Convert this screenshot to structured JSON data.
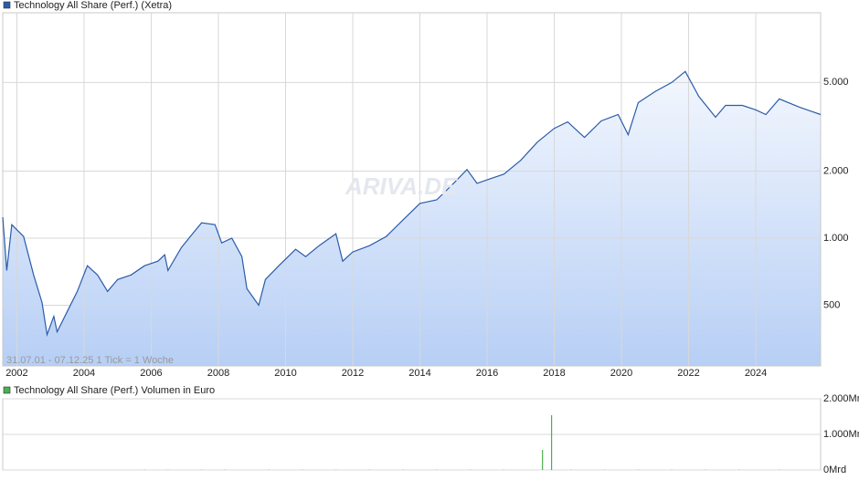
{
  "chart_data": [
    {
      "type": "line",
      "log_scale": true,
      "grid": true,
      "note": "31.07.01 - 07.12.25   1 Tick = 1 Woche",
      "watermark": "ARIVA.DE",
      "xlim": [
        2001.58,
        2025.93
      ],
      "xticks": [
        2002,
        2004,
        2006,
        2008,
        2010,
        2012,
        2014,
        2016,
        2018,
        2020,
        2022,
        2024
      ],
      "ylim": [
        267,
        10270
      ],
      "yticks": [
        500,
        {
          "value": 1000,
          "label": "1.000"
        },
        {
          "value": 2000,
          "label": "2.000"
        },
        {
          "value": 5000,
          "label": "5.000"
        }
      ],
      "x": [
        2001.58,
        2001.7,
        2001.85,
        2002.2,
        2002.5,
        2002.75,
        2002.9,
        2003.1,
        2003.2,
        2003.5,
        2003.8,
        2004.1,
        2004.4,
        2004.7,
        2005.0,
        2005.4,
        2005.8,
        2006.2,
        2006.4,
        2006.5,
        2006.9,
        2007.3,
        2007.5,
        2007.9,
        2008.1,
        2008.4,
        2008.7,
        2008.85,
        2009.2,
        2009.4,
        2009.8,
        2010.3,
        2010.6,
        2011.0,
        2011.5,
        2011.7,
        2012.0,
        2012.5,
        2013.0,
        2013.5,
        2014.0,
        2014.5,
        2015.0,
        2015.4,
        2015.7,
        2016.1,
        2016.5,
        2017.0,
        2017.5,
        2018.0,
        2018.4,
        2018.9,
        2019.4,
        2019.9,
        2020.2,
        2020.5,
        2021.0,
        2021.5,
        2021.9,
        2022.3,
        2022.8,
        2023.1,
        2023.6,
        2024.0,
        2024.3,
        2024.7,
        2025.3,
        2025.93
      ],
      "series": [
        {
          "name": "Technology All Share (Perf.) (Xetra)",
          "color": "#2a5caa",
          "values": [
            1242,
            716,
            1150,
            1018,
            684,
            514,
            369,
            446,
            380,
            469,
            577,
            752,
            684,
            577,
            652,
            684,
            752,
            788,
            842,
            716,
            908,
            1077,
            1172,
            1150,
            952,
            1000,
            826,
            593,
            500,
            652,
            752,
            891,
            826,
            925,
            1047,
            788,
            867,
            925,
            1018,
            1208,
            1432,
            1486,
            1762,
            2032,
            1762,
            1849,
            1938,
            2234,
            2700,
            3110,
            3324,
            2833,
            3359,
            3589,
            2912,
            4055,
            4547,
            5000,
            5600,
            4333,
            3491,
            3945,
            3945,
            3765,
            3589,
            4217,
            3873,
            3589
          ]
        }
      ]
    },
    {
      "type": "bar",
      "grid": true,
      "xlim": [
        2001.58,
        2025.93
      ],
      "ylim": [
        0,
        2000
      ],
      "yticks": [
        {
          "value": 0,
          "label": "0Mrd"
        },
        {
          "value": 1000,
          "label": "1.000Mrd"
        },
        {
          "value": 2000,
          "label": "2.000Mrd"
        }
      ],
      "x": [
        2005.8,
        2006.5,
        2007.5,
        2008.2,
        2009.5,
        2010.5,
        2011.5,
        2012.5,
        2013.5,
        2014.5,
        2015.5,
        2016.5,
        2017.65,
        2017.92,
        2018.5,
        2019.5,
        2020.5,
        2021.5,
        2022.5,
        2023.5,
        2024.7
      ],
      "series": [
        {
          "name": "Technology All Share (Perf.) Volumen in Euro",
          "color": "#4caf50",
          "values": [
            8,
            8,
            8,
            8,
            8,
            8,
            8,
            8,
            8,
            8,
            8,
            8,
            564,
            1540,
            8,
            8,
            8,
            8,
            8,
            8,
            8
          ]
        }
      ]
    }
  ]
}
